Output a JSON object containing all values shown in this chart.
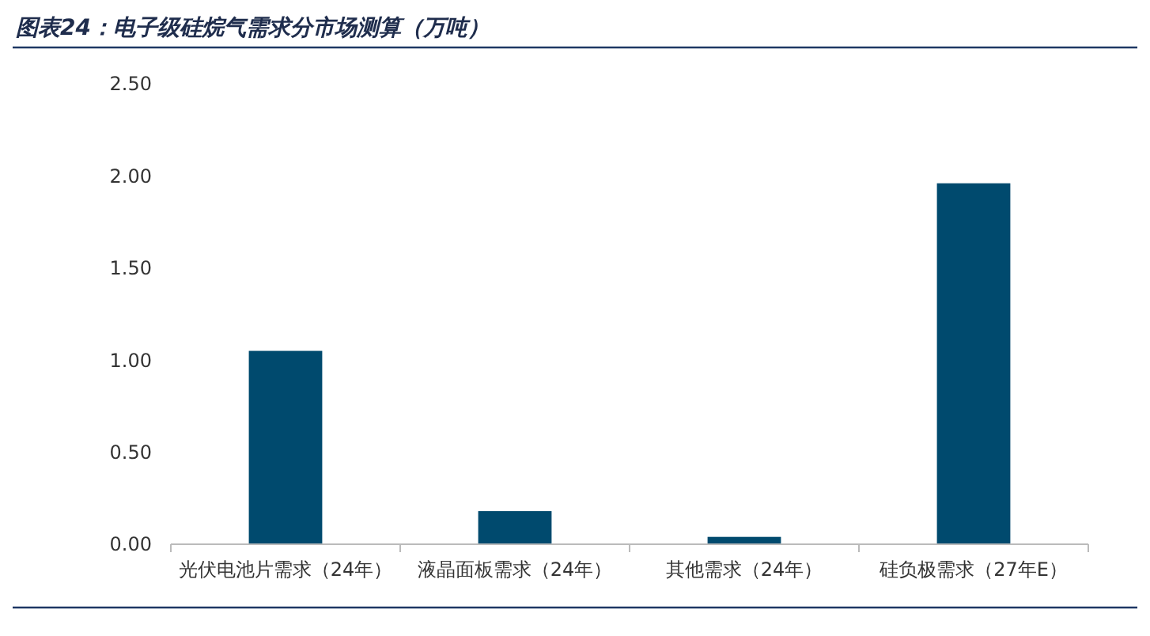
{
  "chart_data": {
    "type": "bar",
    "title": "图表24：电子级硅烷气需求分市场测算（万吨）",
    "categories": [
      "光伏电池片需求（24年）",
      "液晶面板需求（24年）",
      "其他需求（24年）",
      "硅负极需求（27年E）"
    ],
    "values": [
      1.05,
      0.18,
      0.04,
      1.96
    ],
    "color": "#004a6e",
    "ylim": [
      0,
      2.5
    ],
    "yticks": [
      {
        "value": 0,
        "label": "0.00"
      },
      {
        "value": 0.5,
        "label": "0.50"
      },
      {
        "value": 1,
        "label": "1.00"
      },
      {
        "value": 1.5,
        "label": "1.50"
      },
      {
        "value": 2,
        "label": "2.00"
      },
      {
        "value": 2.5,
        "label": "2.50"
      }
    ],
    "grid": false
  }
}
